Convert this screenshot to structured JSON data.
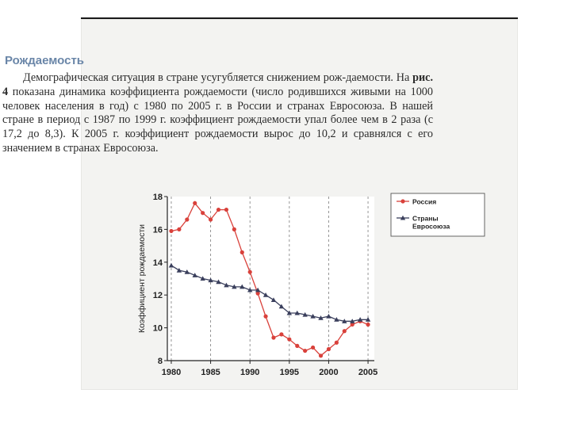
{
  "heading": "Рождаемость",
  "paragraph": {
    "part1": "Демографическая ситуация в стране усугубляется снижением рож-даемости. На ",
    "fig_ref": "рис. 4",
    "part2": " показана динамика коэффициента рождаемости (число родившихся живыми на 1000 человек населения в год) с 1980 по 2005 г. в России и странах Евросоюза. В нашей стране в период с 1987 по 1999 г. коэффициент рождаемости упал более чем в 2 раза (с 17,2 до 8,3). К 2005 г. коэффициент рождаемости вырос до 10,2 и сравнялся с его значением  в странах Евросоюза."
  },
  "chart_data": {
    "type": "line",
    "title": "",
    "xlabel": "",
    "ylabel": "Коэффициент рождаемости",
    "xlim": [
      1979.5,
      2005.8
    ],
    "ylim": [
      8,
      18
    ],
    "xticks": [
      1980,
      1985,
      1990,
      1995,
      2000,
      2005
    ],
    "yticks": [
      8,
      10,
      12,
      14,
      16,
      18
    ],
    "grid": "vertical dashed",
    "legend_position": "top-right",
    "series": [
      {
        "name": "Россия",
        "color": "#d9413b",
        "marker": "circle",
        "x": [
          1980,
          1981,
          1982,
          1983,
          1984,
          1985,
          1986,
          1987,
          1988,
          1989,
          1990,
          1991,
          1992,
          1993,
          1994,
          1995,
          1996,
          1997,
          1998,
          1999,
          2000,
          2001,
          2002,
          2003,
          2004,
          2005
        ],
        "values": [
          15.9,
          16.0,
          16.6,
          17.6,
          17.0,
          16.6,
          17.2,
          17.2,
          16.0,
          14.6,
          13.4,
          12.1,
          10.7,
          9.4,
          9.6,
          9.3,
          8.9,
          8.6,
          8.8,
          8.3,
          8.7,
          9.1,
          9.8,
          10.2,
          10.4,
          10.2
        ]
      },
      {
        "name": "Страны Евросоюза",
        "color": "#3a3f5c",
        "marker": "triangle",
        "x": [
          1980,
          1981,
          1982,
          1983,
          1984,
          1985,
          1986,
          1987,
          1988,
          1989,
          1990,
          1991,
          1992,
          1993,
          1994,
          1995,
          1996,
          1997,
          1998,
          1999,
          2000,
          2001,
          2002,
          2003,
          2004,
          2005
        ],
        "values": [
          13.8,
          13.5,
          13.4,
          13.2,
          13.0,
          12.9,
          12.8,
          12.6,
          12.5,
          12.5,
          12.3,
          12.3,
          12.0,
          11.7,
          11.3,
          10.9,
          10.9,
          10.8,
          10.7,
          10.6,
          10.7,
          10.5,
          10.4,
          10.4,
          10.5,
          10.5
        ]
      }
    ]
  }
}
